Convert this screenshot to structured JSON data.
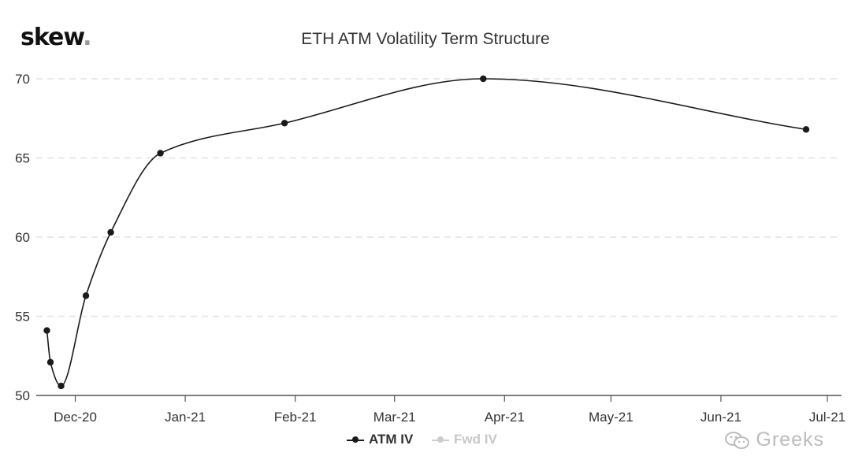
{
  "header": {
    "brand": "skew",
    "brand_dot": ".",
    "title": "ETH ATM Volatility Term Structure"
  },
  "watermark": {
    "text": "Greeks",
    "icon": "wechat-icon"
  },
  "colors": {
    "series": "#1a1a1a",
    "inactive": "#c8c8c8",
    "grid": "#e2e2e2",
    "axis": "#555555"
  },
  "chart_data": {
    "type": "line",
    "title": "ETH ATM Volatility Term Structure",
    "xlabel": "",
    "ylabel": "",
    "ylim": [
      50,
      70
    ],
    "yticks": [
      50,
      55,
      60,
      65,
      70
    ],
    "xlim": [
      "2020-11-20",
      "2021-07-05"
    ],
    "xticks": [
      {
        "label": "Dec-20",
        "date": "2020-12-01"
      },
      {
        "label": "Jan-21",
        "date": "2021-01-01"
      },
      {
        "label": "Feb-21",
        "date": "2021-02-01"
      },
      {
        "label": "Mar-21",
        "date": "2021-03-01"
      },
      {
        "label": "Apr-21",
        "date": "2021-04-01"
      },
      {
        "label": "May-21",
        "date": "2021-05-01"
      },
      {
        "label": "Jun-21",
        "date": "2021-06-01"
      },
      {
        "label": "Jul-21",
        "date": "2021-07-01"
      }
    ],
    "grid": true,
    "legend_position": "bottom-center",
    "series": [
      {
        "name": "ATM IV",
        "active": true,
        "points": [
          {
            "x": "2020-11-23",
            "y": 54.1
          },
          {
            "x": "2020-11-24",
            "y": 52.1
          },
          {
            "x": "2020-11-27",
            "y": 50.6
          },
          {
            "x": "2020-12-04",
            "y": 56.3
          },
          {
            "x": "2020-12-11",
            "y": 60.3
          },
          {
            "x": "2020-12-25",
            "y": 65.3
          },
          {
            "x": "2021-01-29",
            "y": 67.2
          },
          {
            "x": "2021-03-26",
            "y": 70.0
          },
          {
            "x": "2021-06-25",
            "y": 66.8
          }
        ]
      },
      {
        "name": "Fwd IV",
        "active": false,
        "points": []
      }
    ]
  }
}
